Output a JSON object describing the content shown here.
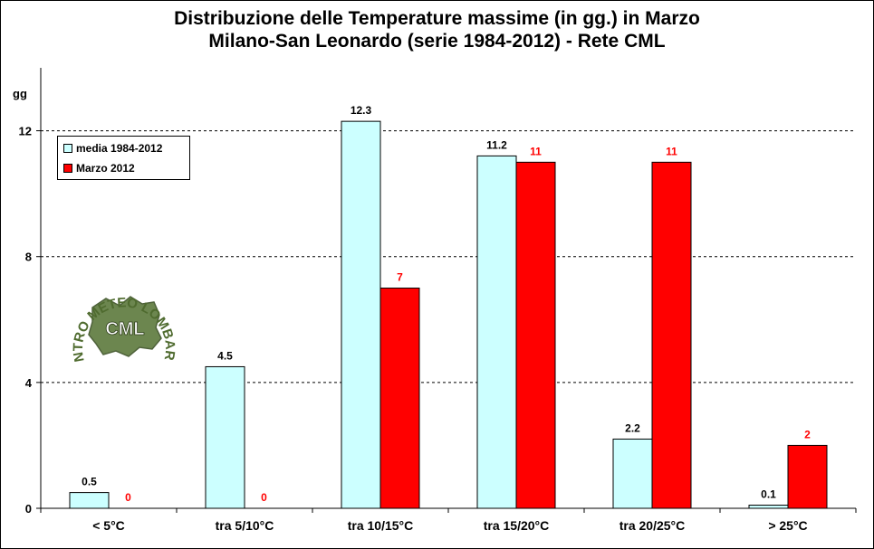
{
  "title": {
    "line1": "Distribuzione  delle  Temperature  massime  (in gg.) in Marzo",
    "line2": "Milano-San  Leonardo  (serie  1984-2012)  - Rete  CML"
  },
  "logo": {
    "text_outer": "CENTRO METEO LOMBARDO",
    "text_inner": "CML"
  },
  "chart_data": {
    "type": "bar",
    "ylabel": "gg",
    "ylim": [
      0,
      14
    ],
    "yticks": [
      0,
      4,
      8,
      12
    ],
    "grid": "horizontal dashed at 4, 8, 12",
    "legend_position": "top-left",
    "categories": [
      "< 5°C",
      "tra 5/10°C",
      "tra 10/15°C",
      "tra 15/20°C",
      "tra 20/25°C",
      "> 25°C"
    ],
    "series": [
      {
        "name": "media 1984-2012",
        "color": "#ccffff",
        "values": [
          0.5,
          4.5,
          12.3,
          11.2,
          2.2,
          0.1
        ],
        "labels": [
          "0.5",
          "4.5",
          "12.3",
          "11.2",
          "2.2",
          "0.1"
        ],
        "label_color": "#000000"
      },
      {
        "name": "Marzo 2012",
        "color": "#ff0000",
        "values": [
          0,
          0,
          7,
          11,
          11,
          2
        ],
        "labels": [
          "0",
          "0",
          "7",
          "11",
          "11",
          "2"
        ],
        "label_color": "#ff0000"
      }
    ]
  }
}
